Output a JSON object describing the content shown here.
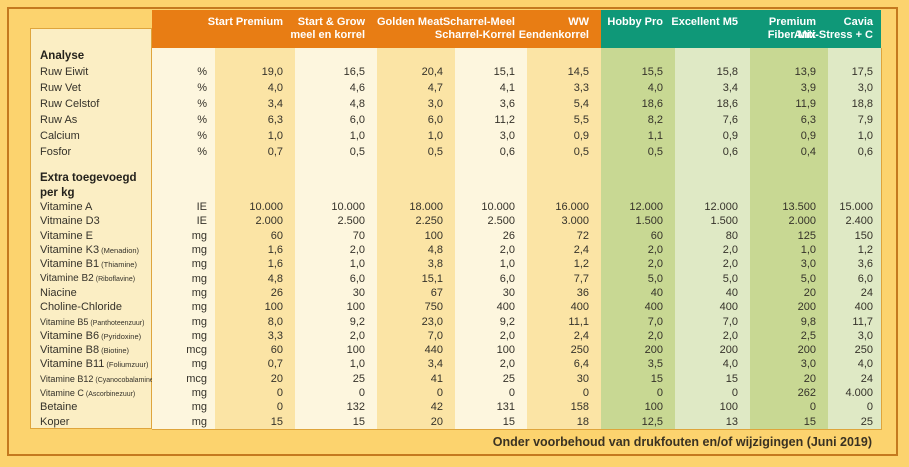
{
  "colors": {
    "page_bg": "#FCD36E",
    "frame": "#C4791F",
    "orange": "#E87D14",
    "teal": "#0F9878",
    "label_bg": "#FBEEC4",
    "s_light": "#FDF6DE",
    "s_dark": "#FBE4A5",
    "g_dark": "#C8D893",
    "g_light": "#DFE9C5",
    "ink": "#35322A",
    "boxline": "#DFA53C"
  },
  "table": {
    "columns": [
      {
        "id": "start-premium",
        "line1": "Start Premium",
        "line2": ""
      },
      {
        "id": "start-grow",
        "line1": "Start & Grow",
        "line2": "meel en korrel"
      },
      {
        "id": "golden-meat",
        "line1": "Golden Meat",
        "line2": ""
      },
      {
        "id": "scharrel",
        "line1": "Scharrel-Meel",
        "line2": "Scharrel-Korrel"
      },
      {
        "id": "ww-eendenkorrel",
        "line1": "WW",
        "line2": "Eendenkorrel"
      },
      {
        "id": "hobby-pro",
        "line1": "Hobby Pro",
        "line2": ""
      },
      {
        "id": "excellent-m5",
        "line1": "Excellent M5",
        "line2": ""
      },
      {
        "id": "premium-fiber-mix",
        "line1": "Premium",
        "line2": "Fiber Mix"
      },
      {
        "id": "cavia-anti-stress",
        "line1": "Cavia",
        "line2": "Anti-Stress + C"
      }
    ],
    "rows": [
      {
        "kind": "section",
        "label": "Analyse"
      },
      {
        "kind": "data",
        "label": "Ruw Eiwit",
        "sub": "",
        "unit": "%",
        "values": [
          "19,0",
          "16,5",
          "20,4",
          "15,1",
          "14,5",
          "15,5",
          "15,8",
          "13,9",
          "17,5"
        ]
      },
      {
        "kind": "data",
        "label": "Ruw Vet",
        "sub": "",
        "unit": "%",
        "values": [
          "4,0",
          "4,6",
          "4,7",
          "4,1",
          "3,3",
          "4,0",
          "3,4",
          "3,9",
          "3,0"
        ]
      },
      {
        "kind": "data",
        "label": "Ruw Celstof",
        "sub": "",
        "unit": "%",
        "values": [
          "3,4",
          "4,8",
          "3,0",
          "3,6",
          "5,4",
          "18,6",
          "18,6",
          "11,9",
          "18,8"
        ]
      },
      {
        "kind": "data",
        "label": "Ruw As",
        "sub": "",
        "unit": "%",
        "values": [
          "6,3",
          "6,0",
          "6,0",
          "11,2",
          "5,5",
          "8,2",
          "7,6",
          "6,3",
          "7,9"
        ]
      },
      {
        "kind": "data",
        "label": "Calcium",
        "sub": "",
        "unit": "%",
        "values": [
          "1,0",
          "1,0",
          "1,0",
          "3,0",
          "0,9",
          "1,1",
          "0,9",
          "0,9",
          "1,0"
        ]
      },
      {
        "kind": "data",
        "label": "Fosfor",
        "sub": "",
        "unit": "%",
        "values": [
          "0,7",
          "0,5",
          "0,5",
          "0,6",
          "0,5",
          "0,5",
          "0,6",
          "0,4",
          "0,6"
        ]
      },
      {
        "kind": "gap"
      },
      {
        "kind": "section",
        "label": "Extra toegevoegd"
      },
      {
        "kind": "section",
        "label": "per kg"
      },
      {
        "kind": "data",
        "label": "Vitamine A",
        "sub": "",
        "unit": "IE",
        "values": [
          "10.000",
          "10.000",
          "18.000",
          "10.000",
          "16.000",
          "12.000",
          "12.000",
          "13.500",
          "15.000"
        ]
      },
      {
        "kind": "data",
        "label": "Vitmaine D3",
        "sub": "",
        "unit": "IE",
        "values": [
          "2.000",
          "2.500",
          "2.250",
          "2.500",
          "3.000",
          "1.500",
          "1.500",
          "2.000",
          "2.400"
        ]
      },
      {
        "kind": "data",
        "label": "Vitamine E",
        "sub": "",
        "unit": "mg",
        "values": [
          "60",
          "70",
          "100",
          "26",
          "72",
          "60",
          "80",
          "125",
          "150"
        ]
      },
      {
        "kind": "data",
        "label": "Vitamine K3",
        "sub": "(Menadion)",
        "unit": "mg",
        "values": [
          "1,6",
          "2,0",
          "4,8",
          "2,0",
          "2,4",
          "2,0",
          "2,0",
          "1,0",
          "1,2"
        ]
      },
      {
        "kind": "data",
        "label": "Vitamine B1",
        "sub": "(Thiamine)",
        "unit": "mg",
        "values": [
          "1,6",
          "1,0",
          "3,8",
          "1,0",
          "1,2",
          "2,0",
          "2,0",
          "3,0",
          "3,6"
        ]
      },
      {
        "kind": "data",
        "label": "Vitamine B2",
        "sub": "(Riboflavine)",
        "unit": "mg",
        "values": [
          "4,8",
          "6,0",
          "15,1",
          "6,0",
          "7,7",
          "5,0",
          "5,0",
          "5,0",
          "6,0"
        ]
      },
      {
        "kind": "data",
        "label": "Niacine",
        "sub": "",
        "unit": "mg",
        "values": [
          "26",
          "30",
          "67",
          "30",
          "36",
          "40",
          "40",
          "20",
          "24"
        ]
      },
      {
        "kind": "data",
        "label": "Choline-Chloride",
        "sub": "",
        "unit": "mg",
        "values": [
          "100",
          "100",
          "750",
          "400",
          "400",
          "400",
          "400",
          "200",
          "400"
        ]
      },
      {
        "kind": "data",
        "label": "Vitamine B5",
        "sub": "(Panthoteenzuur)",
        "unit": "mg",
        "values": [
          "8,0",
          "9,2",
          "23,0",
          "9,2",
          "11,1",
          "7,0",
          "7,0",
          "9,8",
          "11,7"
        ]
      },
      {
        "kind": "data",
        "label": "Vitamine B6",
        "sub": "(Pyridoxine)",
        "unit": "mg",
        "values": [
          "3,3",
          "2,0",
          "7,0",
          "2,0",
          "2,4",
          "2,0",
          "2,0",
          "2,5",
          "3,0"
        ]
      },
      {
        "kind": "data",
        "label": "Vitamine B8",
        "sub": "(Biotine)",
        "unit": "mcg",
        "values": [
          "60",
          "100",
          "440",
          "100",
          "250",
          "200",
          "200",
          "200",
          "250"
        ]
      },
      {
        "kind": "data",
        "label": "Vitamine B11",
        "sub": "(Foliumzuur)",
        "unit": "mg",
        "values": [
          "0,7",
          "1,0",
          "3,4",
          "2,0",
          "6,4",
          "3,5",
          "4,0",
          "3,0",
          "4,0"
        ]
      },
      {
        "kind": "data",
        "label": "Vitamine B12",
        "sub": "(Cyanocobalamine)",
        "unit": "mcg",
        "values": [
          "20",
          "25",
          "41",
          "25",
          "30",
          "15",
          "15",
          "20",
          "24"
        ]
      },
      {
        "kind": "data",
        "label": "Vitamine C",
        "sub": "(Ascorbinezuur)",
        "unit": "mg",
        "values": [
          "0",
          "0",
          "0",
          "0",
          "0",
          "0",
          "0",
          "262",
          "4.000"
        ]
      },
      {
        "kind": "data",
        "label": "Betaine",
        "sub": "",
        "unit": "mg",
        "values": [
          "0",
          "132",
          "42",
          "131",
          "158",
          "100",
          "100",
          "0",
          "0"
        ]
      },
      {
        "kind": "data",
        "label": "Koper",
        "sub": "",
        "unit": "mg",
        "values": [
          "15",
          "15",
          "20",
          "15",
          "18",
          "12,5",
          "13",
          "15",
          "25"
        ]
      }
    ]
  },
  "footer": {
    "note": "Onder voorbehoud van drukfouten en/of wijzigingen (Juni 2019)"
  }
}
